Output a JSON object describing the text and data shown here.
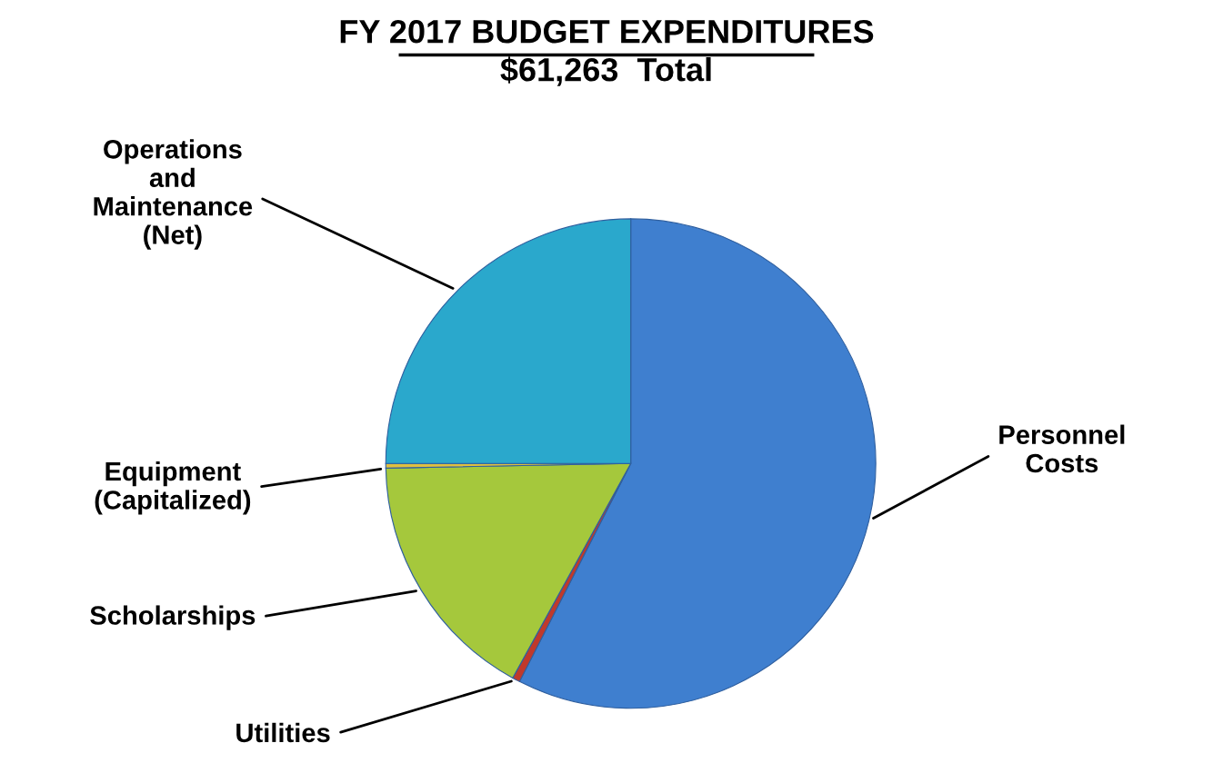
{
  "chart_data": {
    "type": "pie",
    "title": "FY 2017 BUDGET EXPENDITURES",
    "subtitle": "$61,263  Total",
    "categories": [
      "Personnel\nCosts",
      "Utilities",
      "Scholarships",
      "Equipment\n(Capitalized)",
      "Operations\nand\nMaintenance\n(Net)"
    ],
    "values": [
      57.5,
      0.5,
      16.7,
      0.3,
      25.0
    ],
    "colors": [
      "#3f7fcf",
      "#c0392b",
      "#a5c83c",
      "#e0c040",
      "#2aa8cc"
    ],
    "legend": false
  }
}
